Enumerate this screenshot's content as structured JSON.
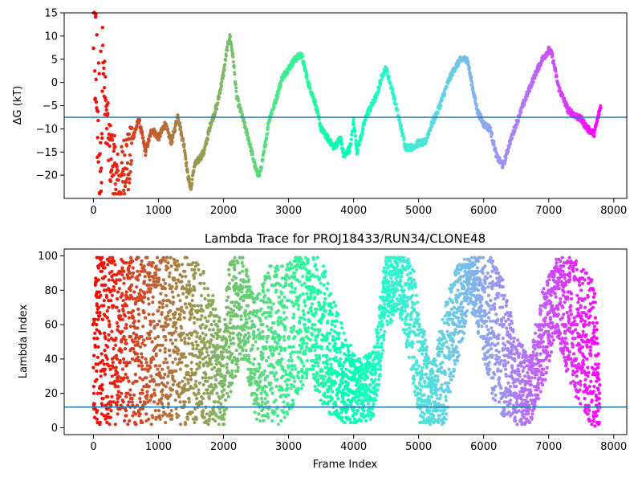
{
  "chart_data": [
    {
      "type": "scatter",
      "title": "",
      "ylabel": "ΔG (kT)",
      "xlabel": "",
      "xlim": [
        -450,
        8200
      ],
      "ylim": [
        -25,
        15
      ],
      "xticks": [
        0,
        1000,
        2000,
        3000,
        4000,
        5000,
        6000,
        7000,
        8000
      ],
      "xtick_labels": [
        "0",
        "1000",
        "2000",
        "3000",
        "4000",
        "5000",
        "6000",
        "7000",
        "8000"
      ],
      "yticks": [
        -20,
        -15,
        -10,
        -5,
        0,
        5,
        10,
        15
      ],
      "ytick_labels": [
        "−20",
        "−15",
        "−10",
        "−5",
        "0",
        "5",
        "10",
        "15"
      ],
      "hline": -7.5,
      "colormap": "rainbow, color from red (start) to violet (end) along frame index",
      "trace_keypoints": [
        [
          0,
          14
        ],
        [
          30,
          5
        ],
        [
          60,
          -5
        ],
        [
          100,
          -12
        ],
        [
          150,
          3
        ],
        [
          200,
          -8
        ],
        [
          250,
          -15
        ],
        [
          300,
          -17
        ],
        [
          350,
          -20
        ],
        [
          400,
          -23
        ],
        [
          450,
          -19
        ],
        [
          500,
          -16
        ],
        [
          550,
          -18
        ],
        [
          600,
          -12
        ],
        [
          700,
          -8
        ],
        [
          800,
          -15
        ],
        [
          900,
          -10
        ],
        [
          1000,
          -12
        ],
        [
          1100,
          -9
        ],
        [
          1200,
          -13
        ],
        [
          1300,
          -7
        ],
        [
          1350,
          -11
        ],
        [
          1400,
          -14
        ],
        [
          1450,
          -20
        ],
        [
          1500,
          -23
        ],
        [
          1550,
          -18
        ],
        [
          1600,
          -17
        ],
        [
          1700,
          -15
        ],
        [
          1800,
          -9
        ],
        [
          1900,
          -5
        ],
        [
          2000,
          2
        ],
        [
          2050,
          7
        ],
        [
          2100,
          10
        ],
        [
          2150,
          5
        ],
        [
          2200,
          -3
        ],
        [
          2300,
          -8
        ],
        [
          2400,
          -13
        ],
        [
          2500,
          -19
        ],
        [
          2550,
          -20
        ],
        [
          2600,
          -17
        ],
        [
          2700,
          -8
        ],
        [
          2800,
          -4
        ],
        [
          2900,
          1
        ],
        [
          3000,
          3
        ],
        [
          3100,
          5
        ],
        [
          3200,
          6
        ],
        [
          3250,
          3
        ],
        [
          3300,
          0
        ],
        [
          3400,
          -4
        ],
        [
          3500,
          -10
        ],
        [
          3600,
          -12
        ],
        [
          3700,
          -14
        ],
        [
          3800,
          -12
        ],
        [
          3850,
          -16
        ],
        [
          3950,
          -14
        ],
        [
          4000,
          -8
        ],
        [
          4050,
          -15
        ],
        [
          4200,
          -7
        ],
        [
          4350,
          -3
        ],
        [
          4450,
          2
        ],
        [
          4500,
          3
        ],
        [
          4600,
          -2
        ],
        [
          4700,
          -8
        ],
        [
          4800,
          -14
        ],
        [
          4900,
          -14
        ],
        [
          5000,
          -13
        ],
        [
          5100,
          -13
        ],
        [
          5200,
          -9
        ],
        [
          5300,
          -6
        ],
        [
          5450,
          0
        ],
        [
          5550,
          3
        ],
        [
          5650,
          5
        ],
        [
          5750,
          5
        ],
        [
          5800,
          1
        ],
        [
          5900,
          -6
        ],
        [
          6000,
          -9
        ],
        [
          6100,
          -10
        ],
        [
          6200,
          -16
        ],
        [
          6300,
          -18
        ],
        [
          6400,
          -13
        ],
        [
          6600,
          -5
        ],
        [
          6800,
          2
        ],
        [
          6900,
          5
        ],
        [
          7000,
          7
        ],
        [
          7050,
          6
        ],
        [
          7150,
          -1
        ],
        [
          7300,
          -6
        ],
        [
          7400,
          -7
        ],
        [
          7500,
          -8
        ],
        [
          7600,
          -10
        ],
        [
          7700,
          -11
        ],
        [
          7800,
          -5
        ]
      ]
    },
    {
      "type": "scatter",
      "title": "Lambda Trace for PROJ18433/RUN34/CLONE48",
      "xlabel": "Frame Index",
      "ylabel": "Lambda Index",
      "xlim": [
        -450,
        8200
      ],
      "ylim": [
        -4,
        104
      ],
      "xticks": [
        0,
        1000,
        2000,
        3000,
        4000,
        5000,
        6000,
        7000,
        8000
      ],
      "xtick_labels": [
        "0",
        "1000",
        "2000",
        "3000",
        "4000",
        "5000",
        "6000",
        "7000",
        "8000"
      ],
      "yticks": [
        0,
        20,
        40,
        60,
        80,
        100
      ],
      "ytick_labels": [
        "0",
        "20",
        "40",
        "60",
        "80",
        "100"
      ],
      "hline": 12,
      "colormap": "rainbow, color from red (start) to violet (end) along frame index",
      "envelope_keypoints": [
        [
          0,
          2,
          100
        ],
        [
          400,
          2,
          100
        ],
        [
          800,
          2,
          100
        ],
        [
          1200,
          2,
          100
        ],
        [
          1500,
          2,
          100
        ],
        [
          1700,
          2,
          92
        ],
        [
          1900,
          2,
          70
        ],
        [
          2000,
          2,
          55
        ],
        [
          2100,
          20,
          100
        ],
        [
          2300,
          40,
          100
        ],
        [
          2500,
          5,
          75
        ],
        [
          2700,
          2,
          95
        ],
        [
          2900,
          2,
          95
        ],
        [
          3100,
          15,
          100
        ],
        [
          3300,
          30,
          100
        ],
        [
          3500,
          15,
          100
        ],
        [
          3700,
          5,
          75
        ],
        [
          3900,
          2,
          50
        ],
        [
          4100,
          2,
          40
        ],
        [
          4300,
          5,
          45
        ],
        [
          4500,
          55,
          100
        ],
        [
          4700,
          70,
          100
        ],
        [
          4900,
          30,
          100
        ],
        [
          5000,
          2,
          70
        ],
        [
          5200,
          2,
          35
        ],
        [
          5400,
          2,
          70
        ],
        [
          5600,
          40,
          100
        ],
        [
          5800,
          70,
          100
        ],
        [
          6000,
          40,
          100
        ],
        [
          6200,
          10,
          100
        ],
        [
          6500,
          2,
          55
        ],
        [
          6700,
          2,
          40
        ],
        [
          6900,
          20,
          80
        ],
        [
          7100,
          55,
          100
        ],
        [
          7300,
          30,
          100
        ],
        [
          7500,
          10,
          95
        ],
        [
          7700,
          0,
          85
        ],
        [
          7780,
          0,
          30
        ]
      ]
    }
  ]
}
